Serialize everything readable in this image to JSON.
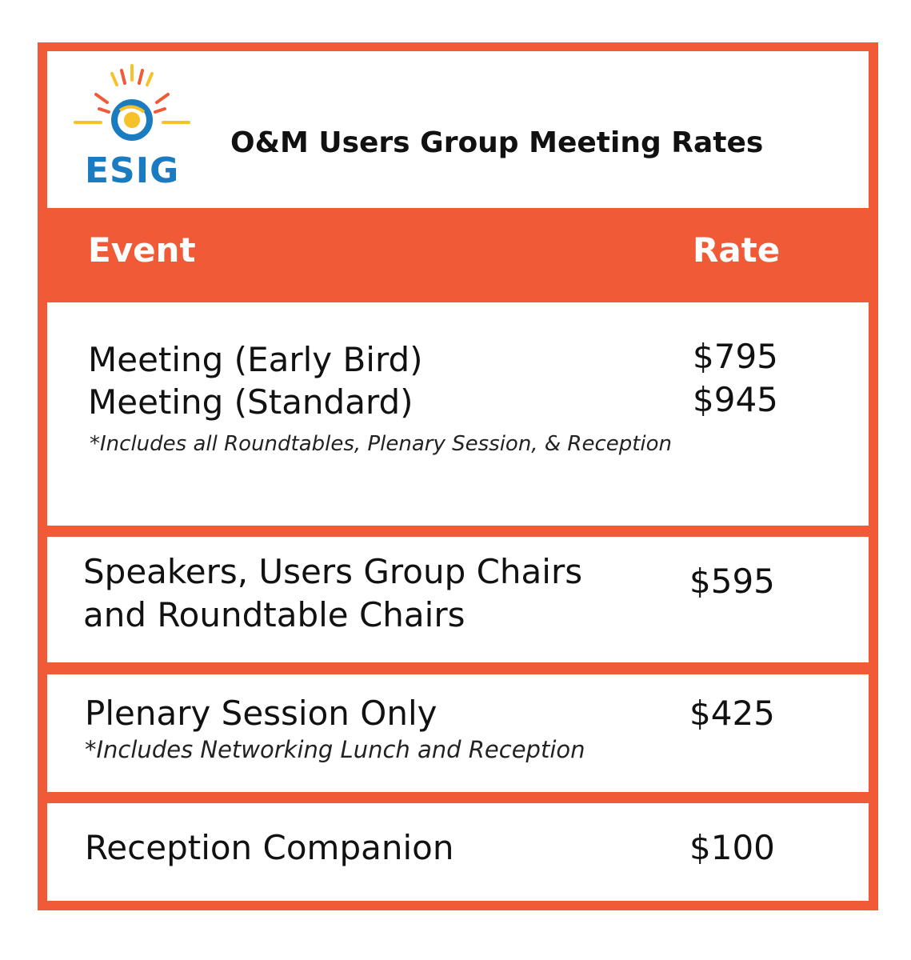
{
  "header": {
    "logo_text": "ESIG",
    "title": "O&M Users Group Meeting Rates"
  },
  "columns": {
    "event": "Event",
    "rate": "Rate"
  },
  "rows": [
    {
      "lines": [
        "Meeting (Early Bird)",
        "Meeting (Standard)"
      ],
      "note": "*Includes all Roundtables, Plenary Session, & Reception",
      "rates": [
        "$795",
        "$945"
      ]
    },
    {
      "lines": [
        "Speakers, Users Group Chairs",
        "and Roundtable Chairs"
      ],
      "rates": [
        "$595"
      ]
    },
    {
      "lines": [
        "Plenary Session Only"
      ],
      "note": "*Includes Networking Lunch and Reception",
      "rates": [
        "$425"
      ]
    },
    {
      "lines": [
        "Reception Companion"
      ],
      "rates": [
        "$100"
      ]
    }
  ],
  "colors": {
    "accent": "#f05a37",
    "logo_blue": "#1a7bc0",
    "logo_yellow": "#f7c12a"
  }
}
